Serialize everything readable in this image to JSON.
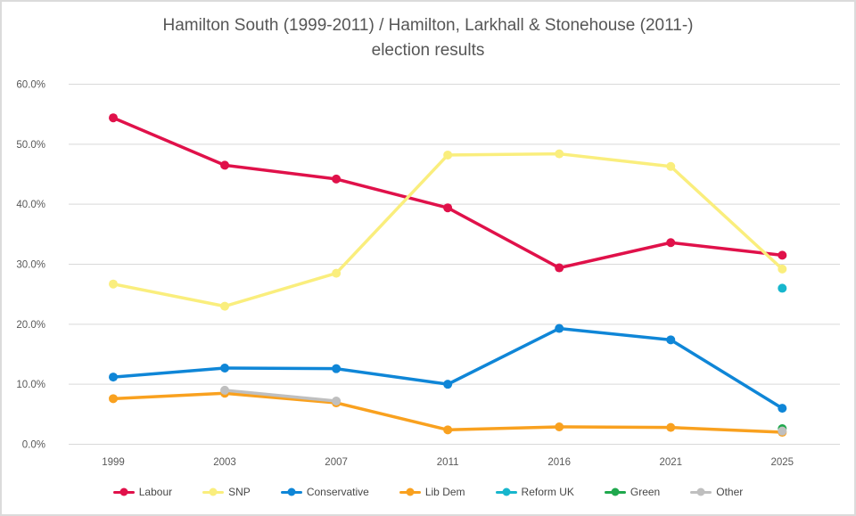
{
  "frame": {
    "background": "#FFFFFF",
    "border_color": "#DBDBDB"
  },
  "chart_data": {
    "type": "line",
    "title": "Hamilton South (1999-2011) / Hamilton, Larkhall & Stonehouse (2011-) election results",
    "title_line1": "Hamilton South (1999-2011) / Hamilton, Larkhall & Stonehouse (2011-)",
    "title_line2": "election results",
    "xlabel": "",
    "ylabel": "",
    "categories": [
      "1999",
      "2003",
      "2007",
      "2011",
      "2016",
      "2021",
      "2025"
    ],
    "ylim": [
      0,
      60
    ],
    "ytick_values": [
      0,
      10,
      20,
      30,
      40,
      50,
      60
    ],
    "ytick_labels": [
      "0.0%",
      "10.0%",
      "20.0%",
      "30.0%",
      "40.0%",
      "50.0%",
      "60.0%"
    ],
    "grid": true,
    "gridline_color": "#D9D9D9",
    "axis_text_color": "#595959",
    "title_color": "#565656",
    "legend_position": "bottom",
    "series": [
      {
        "name": "Labour",
        "color": "#E0114A",
        "values": [
          54.4,
          46.5,
          44.2,
          39.4,
          29.4,
          33.6,
          31.5
        ]
      },
      {
        "name": "SNP",
        "color": "#FAEE7D",
        "values": [
          26.7,
          23.0,
          28.5,
          48.2,
          48.4,
          46.3,
          29.2
        ]
      },
      {
        "name": "Conservative",
        "color": "#0F86D7",
        "values": [
          11.2,
          12.7,
          12.6,
          10.0,
          19.3,
          17.4,
          6.0
        ]
      },
      {
        "name": "Lib Dem",
        "color": "#F9A11F",
        "values": [
          7.6,
          8.5,
          6.9,
          2.4,
          2.9,
          2.8,
          2.0
        ]
      },
      {
        "name": "Reform UK",
        "color": "#17B6CD",
        "values": [
          null,
          null,
          null,
          null,
          null,
          null,
          26.0
        ]
      },
      {
        "name": "Green",
        "color": "#1FA84D",
        "values": [
          null,
          null,
          null,
          null,
          null,
          null,
          2.6
        ]
      },
      {
        "name": "Other",
        "color": "#BFBFBF",
        "values": [
          null,
          9.0,
          7.2,
          null,
          null,
          null,
          2.2
        ]
      }
    ]
  }
}
